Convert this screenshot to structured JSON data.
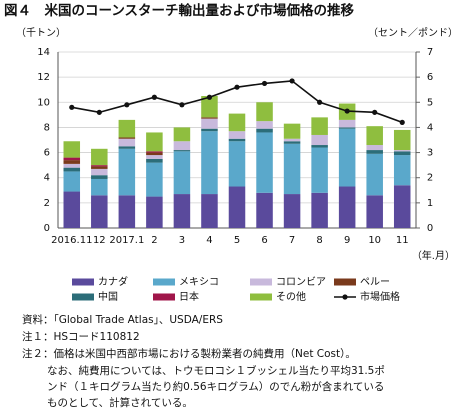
{
  "chart_data": {
    "type": "bar",
    "title": "図４　米国のコーンスターチ輸出量および市場価格の推移",
    "y_label": "（千トン）",
    "y2_label": "（セント／ポンド）",
    "x_label": "（年.月）",
    "categories": [
      "2016.11",
      "12",
      "2017.1",
      "2",
      "3",
      "4",
      "5",
      "6",
      "7",
      "8",
      "9",
      "10",
      "11"
    ],
    "ylim": [
      0,
      14
    ],
    "yticks": [
      0,
      2,
      4,
      6,
      8,
      10,
      12,
      14
    ],
    "y2lim": [
      0,
      7
    ],
    "y2ticks": [
      0,
      1,
      2,
      3,
      4,
      5,
      6,
      7
    ],
    "grid": true,
    "series": [
      {
        "name": "カナダ",
        "color": "#5a4a9c",
        "values": [
          2.9,
          2.6,
          2.6,
          2.5,
          2.7,
          2.7,
          3.3,
          2.8,
          2.7,
          2.8,
          3.3,
          2.6,
          3.4
        ]
      },
      {
        "name": "メキシコ",
        "color": "#5aa8cb",
        "values": [
          1.6,
          1.3,
          3.7,
          2.7,
          3.4,
          5.0,
          3.6,
          4.8,
          4.0,
          3.6,
          4.6,
          3.3,
          2.4
        ]
      },
      {
        "name": "コロンビア",
        "color": "#c8b9dc",
        "values": [
          0.3,
          0.5,
          0.6,
          0.3,
          0.7,
          0.8,
          0.6,
          0.6,
          0.2,
          0.8,
          0.6,
          0.4,
          0.1
        ]
      },
      {
        "name": "ペルー",
        "color": "#7a3a1c",
        "values": [
          0.3,
          0.2,
          0.1,
          0.2,
          0,
          0.1,
          0,
          0,
          0,
          0,
          0,
          0,
          0
        ]
      },
      {
        "name": "中国",
        "color": "#2c6d79",
        "values": [
          0.3,
          0.3,
          0.2,
          0.3,
          0.1,
          0.2,
          0.2,
          0.3,
          0.2,
          0.2,
          0.1,
          0.3,
          0.3
        ]
      },
      {
        "name": "日本",
        "color": "#a0164a",
        "values": [
          0.2,
          0.1,
          0,
          0.1,
          0,
          0,
          0,
          0,
          0,
          0,
          0,
          0,
          0
        ]
      },
      {
        "name": "その他",
        "color": "#8fbe3f",
        "values": [
          1.3,
          1.3,
          1.4,
          1.5,
          1.1,
          1.7,
          1.4,
          1.5,
          1.2,
          1.4,
          1.3,
          1.5,
          1.6
        ]
      },
      {
        "name": "市場価格",
        "color": "#111111",
        "type": "line",
        "axis": "y2",
        "values": [
          4.8,
          4.6,
          4.9,
          5.2,
          4.9,
          5.2,
          5.6,
          5.75,
          5.85,
          5.0,
          4.65,
          4.6,
          4.2
        ]
      }
    ]
  },
  "notes": [
    "資料：「Global Trade Atlas」、USDA/ERS",
    "注１：HSコード110812",
    "注２：価格は米国中西部市場における製粉業者の純費用（Net Cost）。",
    "なお、純費用については、トウモロコシ１ブッシェル当たり平均31.5ポ",
    "ンド（１キログラム当たり約0.56キログラム）のでん粉が含まれている",
    "ものとして、計算されている。"
  ]
}
